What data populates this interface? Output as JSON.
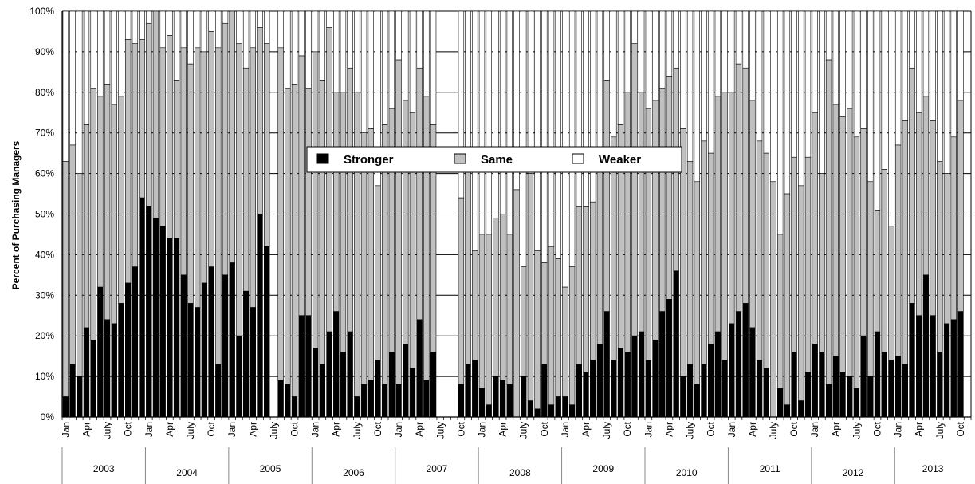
{
  "chart_data": {
    "type": "bar",
    "stacked": true,
    "ylabel": "Percent of Purchasing Managers",
    "ylim": [
      0,
      100
    ],
    "yticks": [
      "0%",
      "10%",
      "20%",
      "30%",
      "40%",
      "50%",
      "60%",
      "70%",
      "80%",
      "90%",
      "100%"
    ],
    "grid": true,
    "legend_position": "center",
    "series": [
      {
        "name": "Stronger",
        "color": "#000000"
      },
      {
        "name": "Same",
        "color": "#c0c0c0"
      },
      {
        "name": "Weaker",
        "color": "#ffffff"
      }
    ],
    "month_labels": [
      "Jan",
      "Apr",
      "July",
      "Oct"
    ],
    "years": [
      "2003",
      "2004",
      "2005",
      "2006",
      "2007",
      "2008",
      "2009",
      "2010",
      "2011",
      "2012",
      "2013"
    ],
    "x_start": "2003-01",
    "stronger": [
      5,
      13,
      10,
      22,
      19,
      32,
      24,
      23,
      28,
      33,
      37,
      54,
      52,
      49,
      47,
      44,
      44,
      35,
      28,
      27,
      33,
      37,
      13,
      35,
      38,
      20,
      31,
      27,
      50,
      42,
      null,
      9,
      8,
      5,
      25,
      25,
      17,
      13,
      21,
      26,
      16,
      21,
      5,
      8,
      9,
      14,
      8,
      16,
      8,
      18,
      12,
      24,
      9,
      16,
      null,
      null,
      null,
      8,
      13,
      14,
      7,
      3,
      10,
      9,
      8,
      0,
      10,
      4,
      2,
      13,
      3,
      5,
      5,
      3,
      13,
      11,
      14,
      18,
      26,
      14,
      17,
      16,
      20,
      21,
      14,
      19,
      26,
      29,
      36,
      10,
      13,
      8,
      13,
      18,
      21,
      14,
      23,
      26,
      28,
      22,
      14,
      12,
      0,
      7,
      3,
      16,
      4,
      11,
      18,
      16,
      8,
      15,
      11,
      10,
      7,
      20,
      10,
      21,
      16,
      14,
      15,
      13,
      28,
      25,
      35,
      25,
      16,
      23,
      24,
      26,
      null
    ],
    "sum_stronger_same": [
      63,
      67,
      60,
      72,
      81,
      79,
      82,
      77,
      79,
      93,
      92,
      93,
      97,
      100,
      91,
      94,
      83,
      91,
      87,
      91,
      90,
      95,
      91,
      97,
      100,
      92,
      86,
      91,
      96,
      92,
      null,
      91,
      81,
      82,
      89,
      81,
      90,
      83,
      96,
      80,
      80,
      86,
      80,
      70,
      71,
      57,
      72,
      76,
      88,
      78,
      75,
      86,
      79,
      72,
      null,
      null,
      null,
      54,
      62,
      41,
      45,
      45,
      49,
      50,
      45,
      56,
      37,
      60,
      41,
      38,
      42,
      39,
      32,
      37,
      52,
      52,
      53,
      65,
      83,
      69,
      72,
      80,
      92,
      80,
      76,
      78,
      81,
      84,
      86,
      71,
      63,
      58,
      68,
      65,
      79,
      80,
      80,
      87,
      86,
      78,
      68,
      65,
      58,
      45,
      55,
      64,
      57,
      64,
      75,
      60,
      88,
      77,
      74,
      76,
      69,
      71,
      58,
      51,
      61,
      47,
      67,
      73,
      86,
      75,
      79,
      73,
      63,
      60,
      69,
      78,
      null
    ]
  }
}
